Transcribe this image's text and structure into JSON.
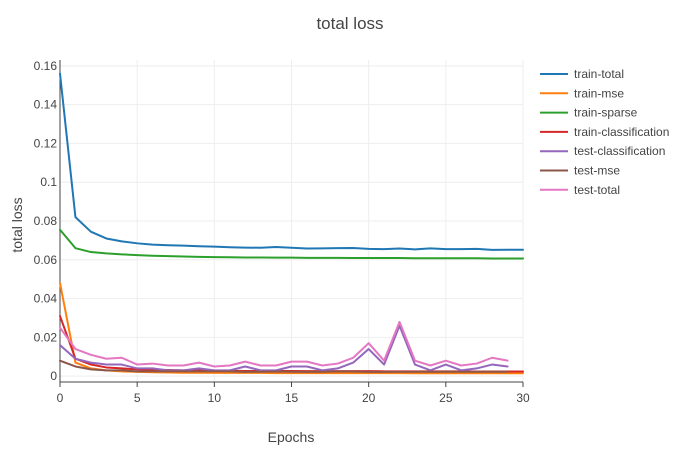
{
  "chart_data": {
    "type": "line",
    "title": "total loss",
    "xlabel": "Epochs",
    "ylabel": "total loss",
    "xlim": [
      0,
      30
    ],
    "ylim": [
      -0.003,
      0.163
    ],
    "x_ticks": [
      0,
      5,
      10,
      15,
      20,
      25,
      30
    ],
    "x_tick_labels": [
      "0",
      "5",
      "10",
      "15",
      "20",
      "25",
      "30"
    ],
    "y_ticks": [
      0,
      0.02,
      0.04,
      0.06,
      0.08,
      0.1,
      0.12,
      0.14,
      0.16
    ],
    "y_tick_labels": [
      "0",
      "0.02",
      "0.04",
      "0.06",
      "0.08",
      "0.1",
      "0.12",
      "0.14",
      "0.16"
    ],
    "grid": true,
    "legend_position": "right",
    "x": [
      0,
      1,
      2,
      3,
      4,
      5,
      6,
      7,
      8,
      9,
      10,
      11,
      12,
      13,
      14,
      15,
      16,
      17,
      18,
      19,
      20,
      21,
      22,
      23,
      24,
      25,
      26,
      27,
      28,
      29,
      30
    ],
    "series": [
      {
        "name": "train-total",
        "color": "#1f77b4",
        "values": [
          0.156,
          0.082,
          0.0745,
          0.071,
          0.0695,
          0.0685,
          0.0678,
          0.0675,
          0.0673,
          0.067,
          0.0668,
          0.0665,
          0.0663,
          0.0662,
          0.0666,
          0.0662,
          0.0658,
          0.0659,
          0.066,
          0.0661,
          0.0656,
          0.0655,
          0.0658,
          0.0654,
          0.0659,
          0.0655,
          0.0655,
          0.0656,
          0.0651,
          0.0652,
          0.0652
        ]
      },
      {
        "name": "train-mse",
        "color": "#ff7f0e",
        "values": [
          0.048,
          0.007,
          0.004,
          0.003,
          0.0025,
          0.0022,
          0.002,
          0.0019,
          0.0018,
          0.0018,
          0.0017,
          0.0017,
          0.0017,
          0.0017,
          0.0016,
          0.0016,
          0.0016,
          0.0016,
          0.0016,
          0.0016,
          0.0016,
          0.0016,
          0.0016,
          0.0015,
          0.0015,
          0.0015,
          0.0015,
          0.0015,
          0.0015,
          0.0015,
          0.0015
        ]
      },
      {
        "name": "train-sparse",
        "color": "#2ca02c",
        "values": [
          0.0755,
          0.066,
          0.064,
          0.0633,
          0.0628,
          0.0624,
          0.0621,
          0.0619,
          0.0617,
          0.0615,
          0.0614,
          0.0613,
          0.0612,
          0.0612,
          0.0611,
          0.0611,
          0.061,
          0.061,
          0.061,
          0.0609,
          0.0609,
          0.0609,
          0.0609,
          0.0608,
          0.0608,
          0.0608,
          0.0608,
          0.0608,
          0.0607,
          0.0607,
          0.0607
        ]
      },
      {
        "name": "train-classification",
        "color": "#d62728",
        "values": [
          0.031,
          0.009,
          0.006,
          0.0045,
          0.004,
          0.0035,
          0.0033,
          0.0032,
          0.003,
          0.0029,
          0.0028,
          0.0028,
          0.0027,
          0.0027,
          0.0027,
          0.0027,
          0.0026,
          0.0026,
          0.0026,
          0.0026,
          0.0026,
          0.0025,
          0.0025,
          0.0025,
          0.0025,
          0.0025,
          0.0025,
          0.0024,
          0.0024,
          0.0024,
          0.0024
        ]
      },
      {
        "name": "test-classification",
        "color": "#9467bd",
        "values": [
          0.016,
          0.009,
          0.007,
          0.006,
          0.006,
          0.004,
          0.004,
          0.003,
          0.003,
          0.004,
          0.003,
          0.003,
          0.005,
          0.003,
          0.003,
          0.005,
          0.005,
          0.003,
          0.004,
          0.007,
          0.014,
          0.006,
          0.026,
          0.006,
          0.003,
          0.006,
          0.003,
          0.004,
          0.006,
          0.005,
          null
        ]
      },
      {
        "name": "test-mse",
        "color": "#8c564b",
        "values": [
          0.008,
          0.005,
          0.0035,
          0.003,
          0.003,
          0.0025,
          0.0025,
          0.0025,
          0.0025,
          0.0025,
          0.0025,
          0.0025,
          0.0022,
          0.0023,
          0.0024,
          0.0023,
          0.0022,
          0.0023,
          0.0024,
          0.0024,
          0.0022,
          0.0022,
          0.0023,
          0.0023,
          0.0023,
          0.0023,
          0.0023,
          0.0023,
          0.0023,
          0.0023,
          null
        ]
      },
      {
        "name": "test-total",
        "color": "#e377c2",
        "values": [
          0.025,
          0.014,
          0.011,
          0.009,
          0.0095,
          0.006,
          0.0065,
          0.0055,
          0.0055,
          0.007,
          0.005,
          0.0055,
          0.0075,
          0.0055,
          0.0055,
          0.0075,
          0.0075,
          0.0055,
          0.0065,
          0.0095,
          0.017,
          0.008,
          0.028,
          0.008,
          0.0055,
          0.008,
          0.0055,
          0.0065,
          0.0095,
          0.008,
          null
        ]
      }
    ]
  }
}
